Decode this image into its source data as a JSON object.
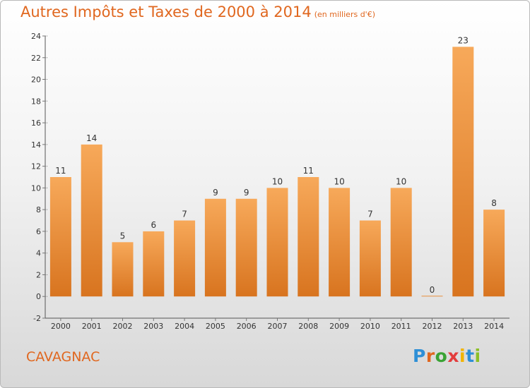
{
  "header": {
    "title": "Autres Impôts et Taxes de 2000 à 2014",
    "subtitle": "(en milliers d'€)"
  },
  "footer": {
    "commune": "CAVAGNAC",
    "logo_letters": [
      "P",
      "r",
      "o",
      "x",
      "i",
      "t",
      "i"
    ]
  },
  "colors": {
    "title": "#e0671f",
    "bar_light": "#f7a95a",
    "bar_dark": "#d8741f",
    "axis": "#555555",
    "grid_tick": "#777777"
  },
  "chart_data": {
    "type": "bar",
    "title": "Autres Impôts et Taxes de 2000 à 2014",
    "subtitle": "(en milliers d'€)",
    "xlabel": "",
    "ylabel": "",
    "categories": [
      "2000",
      "2001",
      "2002",
      "2003",
      "2004",
      "2005",
      "2006",
      "2007",
      "2008",
      "2009",
      "2010",
      "2011",
      "2012",
      "2013",
      "2014"
    ],
    "values": [
      11,
      14,
      5,
      6,
      7,
      9,
      9,
      10,
      11,
      10,
      7,
      10,
      0,
      23,
      8
    ],
    "ylim": [
      -2,
      24
    ],
    "yticks": [
      -2,
      0,
      2,
      4,
      6,
      8,
      10,
      12,
      14,
      16,
      18,
      20,
      22,
      24
    ],
    "grid": false,
    "legend": "none"
  }
}
